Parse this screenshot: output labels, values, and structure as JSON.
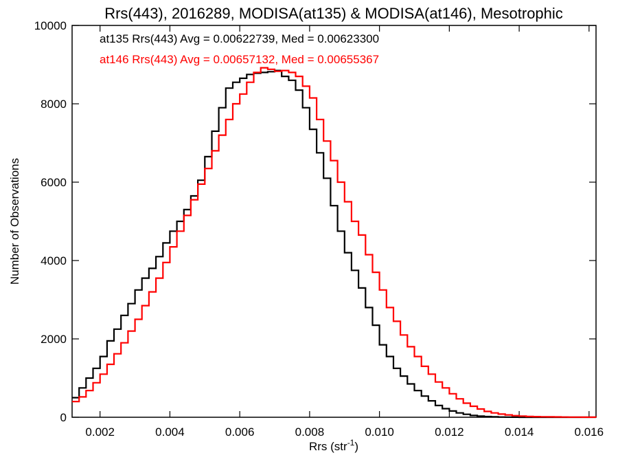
{
  "chart_data": {
    "type": "line",
    "title": "Rrs(443), 2016289, MODISA(at135) & MODISA(at146), Mesotrophic",
    "xlabel": "Rrs (str",
    "xlabel_sup": "-1",
    "xlabel_end": ")",
    "ylabel": "Number of Observations",
    "xlim": [
      0.0012,
      0.0162
    ],
    "ylim": [
      0,
      10000
    ],
    "xticks": [
      0.002,
      0.004,
      0.006,
      0.008,
      0.01,
      0.012,
      0.014,
      0.016
    ],
    "xtick_labels": [
      "0.002",
      "0.004",
      "0.006",
      "0.008",
      "0.010",
      "0.012",
      "0.014",
      "0.016"
    ],
    "yticks": [
      0,
      2000,
      4000,
      6000,
      8000,
      10000
    ],
    "ytick_labels": [
      "0",
      "2000",
      "4000",
      "6000",
      "8000",
      "10000"
    ],
    "grid": false,
    "legend_placement": "top-left",
    "series": [
      {
        "label": "at135 Rrs(443) Avg = 0.00622739, Med = 0.00623300",
        "color": "#000000",
        "step": true,
        "x": [
          0.0012,
          0.0014,
          0.0016,
          0.0018,
          0.002,
          0.0022,
          0.0024,
          0.0026,
          0.0028,
          0.003,
          0.0032,
          0.0034,
          0.0036,
          0.0038,
          0.004,
          0.0042,
          0.0044,
          0.0046,
          0.0048,
          0.005,
          0.0052,
          0.0054,
          0.0056,
          0.0058,
          0.006,
          0.0062,
          0.0064,
          0.0066,
          0.0068,
          0.007,
          0.0072,
          0.0074,
          0.0076,
          0.0078,
          0.008,
          0.0082,
          0.0084,
          0.0086,
          0.0088,
          0.009,
          0.0092,
          0.0094,
          0.0096,
          0.0098,
          0.01,
          0.0102,
          0.0104,
          0.0106,
          0.0108,
          0.011,
          0.0112,
          0.0114,
          0.0116,
          0.0118,
          0.012,
          0.0122,
          0.0124,
          0.0126,
          0.0128,
          0.013,
          0.0132,
          0.0134,
          0.0136,
          0.0138,
          0.014,
          0.0142,
          0.0144,
          0.0146,
          0.0148,
          0.015,
          0.0152,
          0.0154,
          0.0156,
          0.0158,
          0.016,
          0.0162
        ],
        "y": [
          500,
          750,
          1000,
          1250,
          1550,
          1950,
          2250,
          2600,
          2900,
          3250,
          3550,
          3800,
          4100,
          4450,
          4750,
          5000,
          5300,
          5650,
          6050,
          6650,
          7300,
          7900,
          8400,
          8550,
          8650,
          8750,
          8780,
          8800,
          8820,
          8850,
          8700,
          8600,
          8350,
          7900,
          7350,
          6750,
          6100,
          5400,
          4750,
          4200,
          3750,
          3300,
          2800,
          2350,
          1850,
          1550,
          1250,
          1050,
          850,
          680,
          540,
          420,
          300,
          220,
          160,
          110,
          75,
          45,
          28,
          18,
          10,
          6,
          4,
          2,
          0,
          0,
          0,
          0,
          0,
          0,
          0,
          0,
          0,
          0,
          0,
          0
        ]
      },
      {
        "label": "at146 Rrs(443) Avg = 0.00657132, Med = 0.00655367",
        "color": "#ff0000",
        "step": true,
        "x": [
          0.0012,
          0.0014,
          0.0016,
          0.0018,
          0.002,
          0.0022,
          0.0024,
          0.0026,
          0.0028,
          0.003,
          0.0032,
          0.0034,
          0.0036,
          0.0038,
          0.004,
          0.0042,
          0.0044,
          0.0046,
          0.0048,
          0.005,
          0.0052,
          0.0054,
          0.0056,
          0.0058,
          0.006,
          0.0062,
          0.0064,
          0.0066,
          0.0068,
          0.007,
          0.0072,
          0.0074,
          0.0076,
          0.0078,
          0.008,
          0.0082,
          0.0084,
          0.0086,
          0.0088,
          0.009,
          0.0092,
          0.0094,
          0.0096,
          0.0098,
          0.01,
          0.0102,
          0.0104,
          0.0106,
          0.0108,
          0.011,
          0.0112,
          0.0114,
          0.0116,
          0.0118,
          0.012,
          0.0122,
          0.0124,
          0.0126,
          0.0128,
          0.013,
          0.0132,
          0.0134,
          0.0136,
          0.0138,
          0.014,
          0.0142,
          0.0144,
          0.0146,
          0.0148,
          0.015,
          0.0152,
          0.0154,
          0.0156,
          0.0158,
          0.016,
          0.0162
        ],
        "y": [
          400,
          520,
          680,
          880,
          1100,
          1350,
          1620,
          1900,
          2200,
          2500,
          2850,
          3200,
          3550,
          3950,
          4350,
          4750,
          5150,
          5550,
          5950,
          6350,
          6800,
          7200,
          7600,
          8000,
          8250,
          8550,
          8800,
          8920,
          8880,
          8830,
          8850,
          8800,
          8700,
          8450,
          8150,
          7600,
          7050,
          6550,
          6000,
          5500,
          5000,
          4650,
          4150,
          3700,
          3250,
          2800,
          2450,
          2100,
          1800,
          1550,
          1300,
          1100,
          900,
          750,
          600,
          470,
          360,
          280,
          210,
          150,
          110,
          80,
          60,
          40,
          30,
          20,
          15,
          12,
          10,
          8,
          6,
          4,
          3,
          2,
          1,
          0
        ]
      }
    ]
  }
}
